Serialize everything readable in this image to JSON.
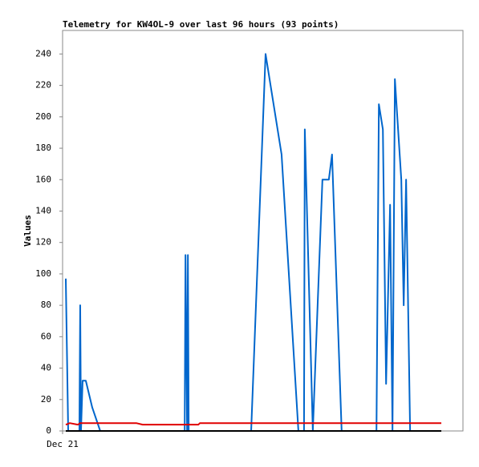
{
  "chart_data": {
    "type": "line",
    "title": "Telemetry for KW4OL-9 over last 96 hours (93 points)",
    "y_label": "Values",
    "xlim": [
      0,
      100
    ],
    "xticks": [
      {
        "value": 0,
        "label": "Dec 21"
      }
    ],
    "ylim": [
      0,
      255
    ],
    "yticks": [
      0,
      20,
      40,
      60,
      80,
      100,
      120,
      140,
      160,
      180,
      200,
      220,
      240
    ],
    "grid": false,
    "series": [
      {
        "color": "#0066cc",
        "x": [
          0.8,
          1.4,
          4.2,
          4.4,
          4.6,
          5.0,
          5.8,
          7.4,
          9.4,
          30.5,
          30.7,
          31.1,
          31.3,
          31.5,
          47.1,
          50.7,
          54.7,
          58.9,
          60.3,
          60.5,
          62.5,
          64.9,
          66.5,
          67.3,
          69.7,
          78.4,
          79.0,
          80.0,
          80.8,
          81.8,
          82.4,
          83.0,
          84.6,
          85.2,
          85.8,
          86.8
        ],
        "values": [
          97,
          0,
          0,
          80,
          0,
          32,
          32,
          15,
          0,
          0,
          112,
          0,
          112,
          0,
          0,
          240,
          176,
          0,
          0,
          192,
          0,
          160,
          160,
          176,
          0,
          0,
          208,
          192,
          30,
          144,
          0,
          224,
          160,
          80,
          160,
          0
        ]
      },
      {
        "color": "#e00000",
        "x": [
          0.8,
          1.8,
          3.8,
          4.4,
          18.4,
          20.0,
          30.5,
          33.9,
          34.3,
          94.6
        ],
        "values": [
          4,
          5,
          4,
          5,
          5,
          4,
          4,
          4,
          5,
          5
        ]
      },
      {
        "color": "#000000",
        "x": [
          0.8,
          94.6
        ],
        "values": [
          0,
          0
        ]
      }
    ]
  }
}
